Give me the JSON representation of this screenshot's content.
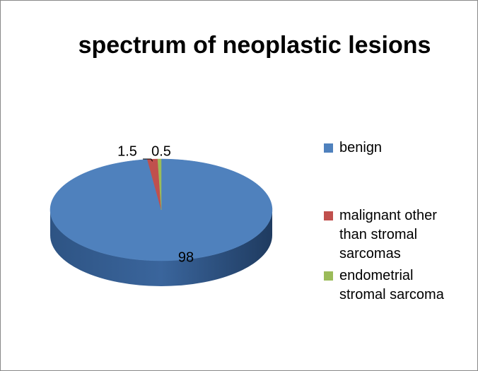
{
  "chart_data": {
    "type": "pie",
    "title": "spectrum of neoplastic lesions",
    "categories": [
      "benign",
      "malignant other than stromal sarcomas",
      "endometrial stromal sarcoma"
    ],
    "values": [
      98,
      1.5,
      0.5
    ],
    "colors": [
      "#4f81bd",
      "#c0504d",
      "#9bbb59"
    ],
    "legend": "right"
  }
}
